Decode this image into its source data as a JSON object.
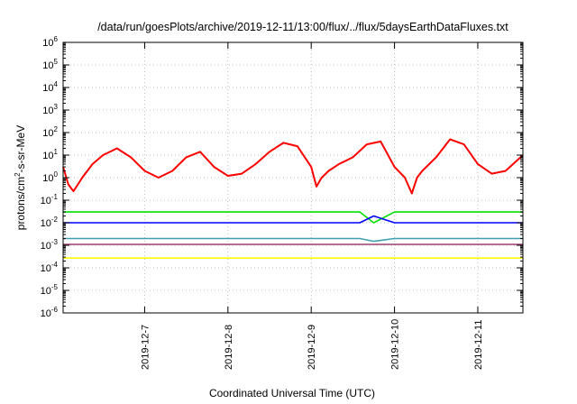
{
  "chart_data": {
    "type": "line",
    "title": "/data/run/goesPlots/archive/2019-12-11/13:00/flux/../flux/5daysEarthDataFluxes.txt",
    "xlabel": "Coordinated Universal Time (UTC)",
    "ylabel": "protons/cm²-s-sr-MeV",
    "y_scale": "log",
    "ylim_exponents": [
      -6,
      6
    ],
    "x_ticks": [
      "2019-12-7",
      "2019-12-8",
      "2019-12-9",
      "2019-12-10",
      "2019-12-11"
    ],
    "xlim": [
      "2019-12-06 00:30",
      "2019-12-11 13:00"
    ],
    "grid": true,
    "series": [
      {
        "color": "#ff0000",
        "x": [
          "2019-12-06 00:30",
          "2019-12-06 02:00",
          "2019-12-06 03:30",
          "2019-12-06 06:00",
          "2019-12-06 09:00",
          "2019-12-06 12:00",
          "2019-12-06 16:00",
          "2019-12-06 20:00",
          "2019-12-07 00:00",
          "2019-12-07 04:00",
          "2019-12-07 08:00",
          "2019-12-07 12:00",
          "2019-12-07 16:00",
          "2019-12-07 20:00",
          "2019-12-08 00:00",
          "2019-12-08 04:00",
          "2019-12-08 08:00",
          "2019-12-08 12:00",
          "2019-12-08 16:00",
          "2019-12-08 20:00",
          "2019-12-09 00:00",
          "2019-12-09 01:30",
          "2019-12-09 03:00",
          "2019-12-09 05:00",
          "2019-12-09 08:00",
          "2019-12-09 12:00",
          "2019-12-09 16:00",
          "2019-12-09 20:00",
          "2019-12-10 00:00",
          "2019-12-10 03:00",
          "2019-12-10 05:00",
          "2019-12-10 06:30",
          "2019-12-10 08:00",
          "2019-12-10 12:00",
          "2019-12-10 16:00",
          "2019-12-10 20:00",
          "2019-12-11 00:00",
          "2019-12-11 04:00",
          "2019-12-11 08:00",
          "2019-12-11 13:00"
        ],
        "values": [
          3,
          0.5,
          0.25,
          1,
          4,
          10,
          20,
          8,
          2,
          1,
          2,
          8,
          14,
          3,
          1.2,
          1.5,
          4,
          14,
          35,
          25,
          3,
          0.4,
          1,
          2,
          4,
          8,
          30,
          40,
          3,
          1,
          0.2,
          1,
          2,
          8,
          50,
          30,
          4,
          1.5,
          2,
          10
        ]
      },
      {
        "color": "#00e000",
        "x": [
          "2019-12-06 00:30",
          "2019-12-09 14:00",
          "2019-12-09 18:00",
          "2019-12-10 00:00",
          "2019-12-11 13:00"
        ],
        "values": [
          0.03,
          0.03,
          0.01,
          0.03,
          0.03
        ]
      },
      {
        "color": "#0000ff",
        "x": [
          "2019-12-06 00:30",
          "2019-12-09 14:00",
          "2019-12-09 18:00",
          "2019-12-10 00:00",
          "2019-12-11 13:00"
        ],
        "values": [
          0.01,
          0.01,
          0.02,
          0.01,
          0.01
        ]
      },
      {
        "color": "#40a0b0",
        "x": [
          "2019-12-06 00:30",
          "2019-12-09 14:00",
          "2019-12-09 18:00",
          "2019-12-10 00:00",
          "2019-12-11 13:00"
        ],
        "values": [
          0.002,
          0.002,
          0.0015,
          0.002,
          0.002
        ]
      },
      {
        "color": "#a04070",
        "x": [
          "2019-12-06 00:30",
          "2019-12-09 14:00",
          "2019-12-10 00:00",
          "2019-12-11 13:00"
        ],
        "values": [
          0.0011,
          0.0011,
          0.0011,
          0.0011
        ]
      },
      {
        "color": "#ffff00",
        "x": [
          "2019-12-06 00:30",
          "2019-12-09 14:00",
          "2019-12-10 00:00",
          "2019-12-11 13:00"
        ],
        "values": [
          0.00027,
          0.00027,
          0.00027,
          0.00027
        ]
      }
    ]
  }
}
